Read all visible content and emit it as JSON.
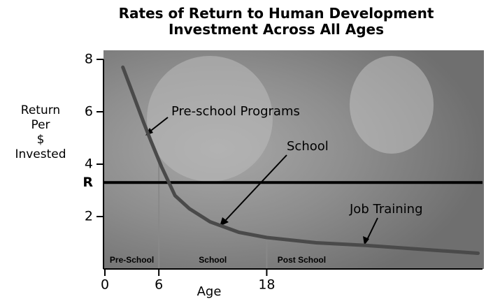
{
  "chart_data": {
    "type": "line",
    "title": "Rates of Return to Human Development Investment Across All Ages",
    "y_label": "Return Per $ Invested",
    "x_label": "Age",
    "x": [
      2.0,
      3.1,
      4.3,
      5.1,
      6.3,
      7.8,
      9.4,
      11.7,
      14.9,
      18.0,
      23.5,
      29.0,
      35.2,
      41.5
    ],
    "series": [
      {
        "color": "#4a4a4a",
        "values": [
          7.7,
          6.7,
          5.6,
          4.9,
          3.9,
          2.8,
          2.3,
          1.8,
          1.4,
          1.2,
          1.0,
          0.9,
          0.75,
          0.6
        ]
      }
    ],
    "xlim": [
      0,
      42
    ],
    "xticks": [
      0,
      6,
      18
    ],
    "ylim": [
      0,
      8
    ],
    "yticks": [
      2,
      4,
      6,
      8
    ],
    "reference_line": {
      "value": 3.3,
      "label": "R",
      "color": "#000000"
    },
    "regions": [
      "Pre-School",
      "School",
      "Post School"
    ],
    "annotations": [
      "Pre-school Programs",
      "School",
      "Job Training"
    ]
  }
}
